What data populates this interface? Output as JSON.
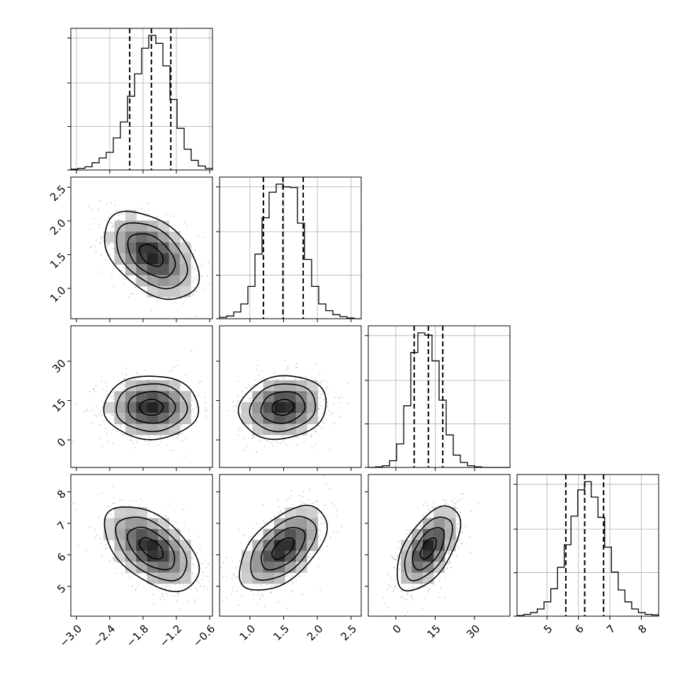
{
  "chart_data": {
    "type": "corner",
    "params": [
      {
        "range": [
          -3.1,
          -0.55
        ],
        "ticks": [
          -3.0,
          -2.4,
          -1.8,
          -1.2,
          -0.6
        ],
        "tick_labels": [
          "−3.0",
          "−2.4",
          "−1.8",
          "−1.2",
          "−0.6"
        ],
        "quantiles": [
          -2.04,
          -1.65,
          -1.3
        ],
        "hist_counts": [
          1,
          2,
          4,
          9,
          15,
          22,
          40,
          60,
          92,
          120,
          152,
          168,
          158,
          130,
          88,
          52,
          26,
          12,
          5,
          2
        ]
      },
      {
        "range": [
          0.55,
          2.65
        ],
        "ticks": [
          1.0,
          1.5,
          2.0,
          2.5
        ],
        "tick_labels": [
          "1.0",
          "1.5",
          "2.0",
          "2.5"
        ],
        "quantiles": [
          1.2,
          1.49,
          1.79
        ],
        "hist_counts": [
          2,
          4,
          10,
          22,
          48,
          96,
          150,
          188,
          200,
          196,
          195,
          142,
          88,
          48,
          22,
          12,
          6,
          3,
          1,
          0
        ]
      },
      {
        "range": [
          -10.5,
          43.5
        ],
        "ticks": [
          0,
          15,
          30
        ],
        "tick_labels": [
          "0",
          "15",
          "30"
        ],
        "quantiles": [
          7.0,
          12.4,
          17.9
        ],
        "hist_counts": [
          0,
          1,
          3,
          12,
          42,
          110,
          205,
          240,
          236,
          190,
          120,
          58,
          22,
          9,
          3,
          1,
          0,
          0,
          0,
          0
        ]
      },
      {
        "range": [
          4.05,
          8.55
        ],
        "ticks": [
          5,
          6,
          7,
          8
        ],
        "tick_labels": [
          "5",
          "6",
          "7",
          "8"
        ],
        "quantiles": [
          5.6,
          6.2,
          6.8
        ],
        "hist_counts": [
          1,
          3,
          6,
          12,
          24,
          46,
          82,
          120,
          168,
          212,
          226,
          200,
          166,
          116,
          74,
          44,
          24,
          12,
          6,
          3,
          2
        ]
      }
    ],
    "pairs": [
      {
        "row": 1,
        "col": 0,
        "mean": [
          -1.65,
          1.49
        ],
        "sd": [
          0.38,
          0.29
        ],
        "rho": -0.45
      },
      {
        "row": 2,
        "col": 0,
        "mean": [
          -1.65,
          12.4
        ],
        "sd": [
          0.38,
          5.4
        ],
        "rho": 0.0
      },
      {
        "row": 2,
        "col": 1,
        "mean": [
          1.49,
          12.4
        ],
        "sd": [
          0.29,
          5.4
        ],
        "rho": 0.12
      },
      {
        "row": 3,
        "col": 0,
        "mean": [
          -1.65,
          6.2
        ],
        "sd": [
          0.38,
          0.6
        ],
        "rho": -0.52
      },
      {
        "row": 3,
        "col": 1,
        "mean": [
          1.49,
          6.2
        ],
        "sd": [
          0.29,
          0.6
        ],
        "rho": 0.55
      },
      {
        "row": 3,
        "col": 2,
        "mean": [
          12.4,
          6.2
        ],
        "sd": [
          5.4,
          0.6
        ],
        "rho": 0.58
      }
    ],
    "contour_levels_sigma": [
      0.5,
      1.0,
      1.5,
      2.0
    ],
    "grid": true,
    "axis_labels": []
  }
}
